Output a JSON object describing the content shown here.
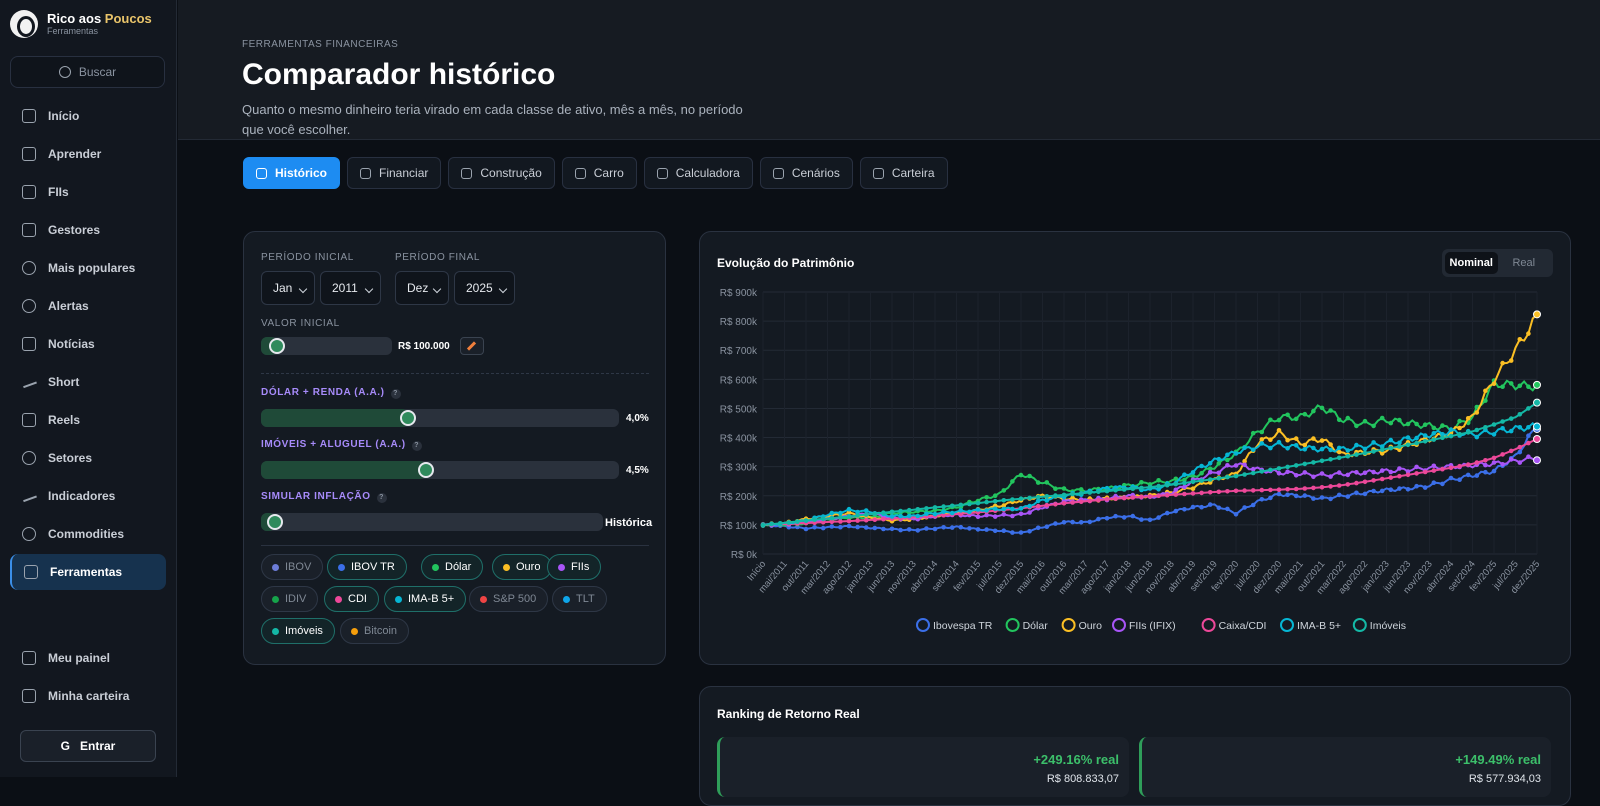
{
  "brand": {
    "name_part1": "Rico aos ",
    "name_part2": "Poucos",
    "subtitle": "Ferramentas"
  },
  "search": {
    "label": "Buscar"
  },
  "nav": [
    {
      "label": "Início",
      "icon": "home-icon"
    },
    {
      "label": "Aprender",
      "icon": "chat-icon"
    },
    {
      "label": "FIIs",
      "icon": "building-icon"
    },
    {
      "label": "Gestores",
      "icon": "bank-icon"
    },
    {
      "label": "Mais populares",
      "icon": "trophy-icon"
    },
    {
      "label": "Alertas",
      "icon": "bell-icon"
    },
    {
      "label": "Notícias",
      "icon": "newspaper-icon"
    },
    {
      "label": "Short",
      "icon": "trend-down-icon"
    },
    {
      "label": "Reels",
      "icon": "video-icon"
    },
    {
      "label": "Setores",
      "icon": "target-icon"
    },
    {
      "label": "Indicadores",
      "icon": "line-chart-icon"
    },
    {
      "label": "Commodities",
      "icon": "anchor-icon"
    },
    {
      "label": "Ferramentas",
      "icon": "document-icon",
      "active": true
    }
  ],
  "bottom_nav": [
    {
      "label": "Meu painel",
      "icon": "grid-icon"
    },
    {
      "label": "Minha carteira",
      "icon": "briefcase-icon"
    }
  ],
  "login": {
    "label": "Entrar",
    "icon": "google-icon"
  },
  "header": {
    "kicker": "FERRAMENTAS FINANCEIRAS",
    "title": "Comparador histórico",
    "subtitle": "Quanto o mesmo dinheiro teria virado em cada classe de ativo, mês a mês, no período que você escolher."
  },
  "tabs": [
    {
      "label": "Histórico",
      "icon": "bar-chart-icon",
      "active": true
    },
    {
      "label": "Financiar",
      "icon": "warning-icon"
    },
    {
      "label": "Construção",
      "icon": "house-icon"
    },
    {
      "label": "Carro",
      "icon": "car-icon"
    },
    {
      "label": "Calculadora",
      "icon": "calculator-icon"
    },
    {
      "label": "Cenários",
      "icon": "bar-chart-icon"
    },
    {
      "label": "Carteira",
      "icon": "globe-icon"
    }
  ],
  "controls": {
    "period_start_label": "PERÍODO INICIAL",
    "period_end_label": "PERÍODO FINAL",
    "start_month": "Jan",
    "start_year": "2011",
    "end_month": "Dez",
    "end_year": "2025",
    "initial_value_label": "VALOR INICIAL",
    "initial_value": "R$ 100.000",
    "initial_value_slider": 0.12,
    "dollar_label": "DÓLAR + RENDA (A.A.)",
    "dollar_value": "4,0%",
    "dollar_slider": 0.41,
    "realestate_label": "IMÓVEIS + ALUGUEL (A.A.)",
    "realestate_value": "4,5%",
    "realestate_slider": 0.46,
    "inflation_label": "SIMULAR INFLAÇÃO",
    "inflation_value": "Histórica",
    "inflation_slider": 0.04,
    "help": "?"
  },
  "chips": [
    {
      "label": "IBOV",
      "color": "#6d7dd8",
      "on": false
    },
    {
      "label": "IBOV TR",
      "color": "#3b6fe8",
      "on": true
    },
    {
      "label": "Dólar",
      "color": "#22c55e",
      "on": true
    },
    {
      "label": "Ouro",
      "color": "#fbbf24",
      "on": true
    },
    {
      "label": "FIIs",
      "color": "#a855f7",
      "on": true
    },
    {
      "label": "IDIV",
      "color": "#16a34a",
      "on": false
    },
    {
      "label": "CDI",
      "color": "#ec4899",
      "on": true
    },
    {
      "label": "IMA-B 5+",
      "color": "#06b6d4",
      "on": true
    },
    {
      "label": "S&P 500",
      "color": "#ef4444",
      "on": false
    },
    {
      "label": "TLT",
      "color": "#0ea5e9",
      "on": false
    },
    {
      "label": "Imóveis",
      "color": "#14b8a6",
      "on": true
    },
    {
      "label": "Bitcoin",
      "color": "#f59e0b",
      "on": false
    }
  ],
  "chart_panel": {
    "title": "Evolução do Patrimônio",
    "toggle_nominal": "Nominal",
    "toggle_real": "Real"
  },
  "chart_data": {
    "type": "line",
    "title": "Evolução do Patrimônio",
    "ylim": [
      0,
      900000
    ],
    "yticks": [
      "R$ 0k",
      "R$ 100k",
      "R$ 200k",
      "R$ 300k",
      "R$ 400k",
      "R$ 500k",
      "R$ 600k",
      "R$ 700k",
      "R$ 800k",
      "R$ 900k"
    ],
    "categories": [
      "Início",
      "mai/2011",
      "out/2011",
      "mar/2012",
      "ago/2012",
      "jan/2013",
      "jun/2013",
      "nov/2013",
      "abr/2014",
      "set/2014",
      "fev/2015",
      "jul/2015",
      "dez/2015",
      "mai/2016",
      "out/2016",
      "mar/2017",
      "ago/2017",
      "jan/2018",
      "jun/2018",
      "nov/2018",
      "abr/2019",
      "set/2019",
      "fev/2020",
      "jul/2020",
      "dez/2020",
      "mai/2021",
      "out/2021",
      "mar/2022",
      "ago/2022",
      "jan/2023",
      "jun/2023",
      "nov/2023",
      "abr/2024",
      "set/2024",
      "fev/2025",
      "jul/2025",
      "dez/2025"
    ],
    "legend_position": "bottom",
    "grid": true,
    "series": [
      {
        "name": "Ibovespa TR",
        "color": "#3b6fe8",
        "values": [
          100,
          95,
          88,
          92,
          95,
          90,
          85,
          82,
          88,
          93,
          85,
          80,
          72,
          92,
          110,
          108,
          125,
          130,
          115,
          145,
          160,
          168,
          140,
          180,
          205,
          200,
          190,
          200,
          210,
          220,
          225,
          235,
          255,
          270,
          285,
          335,
          440
        ]
      },
      {
        "name": "Dólar",
        "color": "#22c55e",
        "values": [
          100,
          100,
          105,
          118,
          125,
          125,
          140,
          145,
          148,
          160,
          185,
          205,
          275,
          245,
          220,
          218,
          225,
          235,
          245,
          250,
          265,
          300,
          345,
          420,
          470,
          470,
          505,
          460,
          445,
          460,
          450,
          440,
          430,
          470,
          585,
          580,
          575
        ]
      },
      {
        "name": "Ouro",
        "color": "#fbbf24",
        "values": [
          100,
          105,
          120,
          130,
          140,
          125,
          115,
          120,
          130,
          140,
          150,
          165,
          185,
          200,
          190,
          185,
          190,
          195,
          200,
          210,
          230,
          255,
          275,
          380,
          415,
          380,
          395,
          340,
          350,
          355,
          375,
          395,
          415,
          470,
          600,
          700,
          815
        ]
      },
      {
        "name": "FIIs (IFIX)",
        "color": "#a855f7",
        "values": [
          100,
          102,
          110,
          120,
          130,
          140,
          125,
          120,
          130,
          135,
          130,
          132,
          135,
          160,
          180,
          185,
          190,
          200,
          195,
          210,
          250,
          280,
          310,
          290,
          280,
          275,
          270,
          275,
          280,
          285,
          290,
          295,
          300,
          305,
          310,
          320,
          330
        ]
      },
      {
        "name": "Caixa/CDI",
        "color": "#ec4899",
        "values": [
          100,
          103,
          106,
          110,
          113,
          117,
          121,
          126,
          131,
          137,
          143,
          150,
          157,
          166,
          174,
          181,
          188,
          193,
          198,
          203,
          208,
          213,
          217,
          219,
          221,
          224,
          229,
          237,
          248,
          260,
          272,
          284,
          296,
          310,
          330,
          360,
          395
        ]
      },
      {
        "name": "IMA-B 5+",
        "color": "#06b6d4",
        "values": [
          100,
          105,
          115,
          135,
          150,
          145,
          130,
          130,
          140,
          145,
          150,
          155,
          155,
          185,
          200,
          210,
          225,
          230,
          220,
          240,
          285,
          320,
          350,
          370,
          375,
          365,
          360,
          360,
          370,
          380,
          395,
          410,
          420,
          410,
          420,
          430,
          440
        ]
      },
      {
        "name": "Imóveis",
        "color": "#14b8a6",
        "values": [
          100,
          107,
          115,
          122,
          129,
          137,
          145,
          152,
          160,
          167,
          175,
          183,
          190,
          197,
          203,
          210,
          216,
          223,
          230,
          238,
          248,
          258,
          268,
          281,
          294,
          307,
          320,
          333,
          347,
          361,
          375,
          390,
          405,
          421,
          445,
          470,
          520
        ]
      }
    ],
    "value_unit": "thousands"
  },
  "ranking": {
    "title": "Ranking de Retorno Real",
    "items": [
      {
        "pct": "+249.16% real",
        "value": "R$ 808.833,07"
      },
      {
        "pct": "+149.49% real",
        "value": "R$ 577.934,03"
      }
    ]
  }
}
